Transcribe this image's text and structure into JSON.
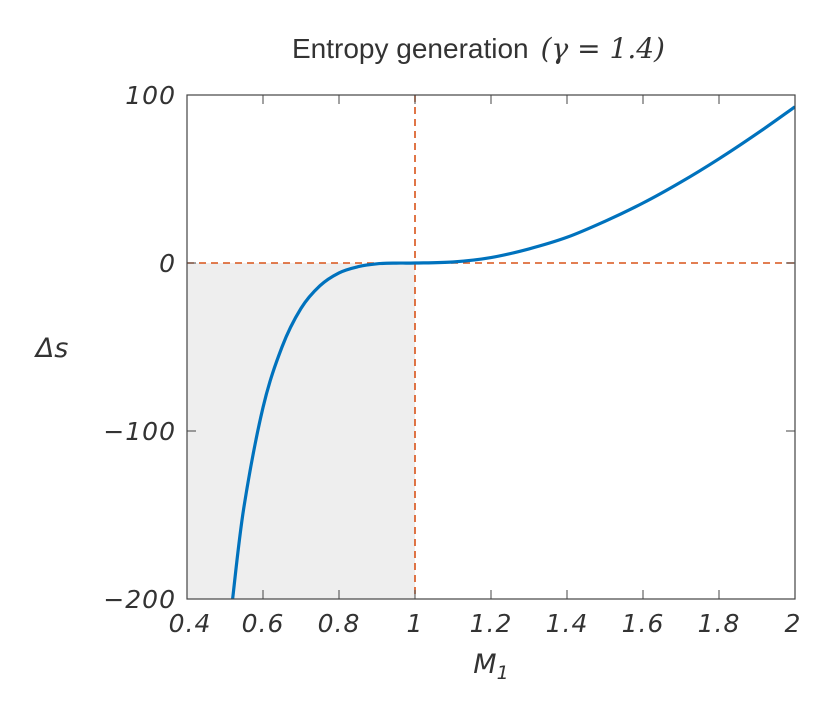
{
  "chart_data": {
    "type": "line",
    "title": {
      "text": "Entropy generation",
      "math": "(γ = 1.4)"
    },
    "xlabel": {
      "main": "M",
      "sub": "1"
    },
    "ylabel": "Δs",
    "xlim": [
      0.4,
      2
    ],
    "ylim": [
      -200,
      100
    ],
    "x_ticks": [
      0.4,
      0.6,
      0.8,
      1,
      1.2,
      1.4,
      1.6,
      1.8,
      2
    ],
    "x_tick_labels": [
      "0.4",
      "0.6",
      "0.8",
      "1",
      "1.2",
      "1.4",
      "1.6",
      "1.8",
      "2"
    ],
    "y_ticks": [
      -200,
      -100,
      0,
      100
    ],
    "y_tick_labels": [
      "−200",
      "−100",
      "0",
      "100"
    ],
    "gamma": 1.4,
    "shaded_region": {
      "x": [
        0.4,
        1
      ],
      "y": [
        -200,
        0
      ],
      "color": "#eeeeee"
    },
    "reference_lines": [
      {
        "orientation": "horizontal",
        "value": 0,
        "color": "#d95319",
        "style": "dashed"
      },
      {
        "orientation": "vertical",
        "value": 1,
        "color": "#d95319",
        "style": "dashed"
      }
    ],
    "series": [
      {
        "color": "#0072bd",
        "x": [
          0.52,
          0.55,
          0.6,
          0.65,
          0.7,
          0.75,
          0.8,
          0.85,
          0.9,
          0.95,
          1.0,
          1.1,
          1.2,
          1.3,
          1.4,
          1.5,
          1.6,
          1.7,
          1.8,
          1.9,
          2.0
        ],
        "y": [
          -200,
          -145,
          -86,
          -50,
          -27,
          -13.5,
          -5.9,
          -2.2,
          -0.5,
          -0.06,
          0,
          0.6,
          3.2,
          8.4,
          15.3,
          24.8,
          35.7,
          48.2,
          62.0,
          77.0,
          93.0
        ]
      }
    ]
  }
}
